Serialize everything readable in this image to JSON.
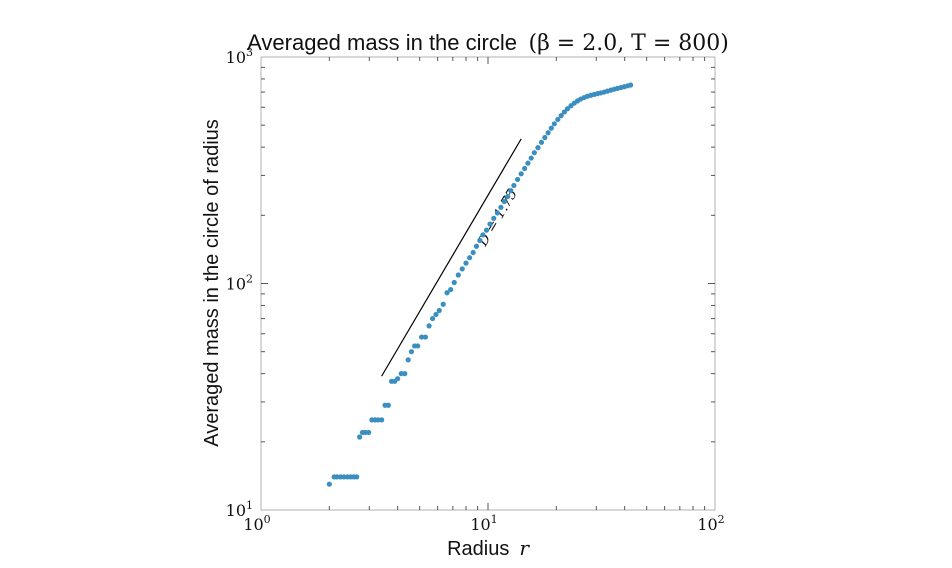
{
  "chart_data": {
    "type": "scatter",
    "title_main": "Averaged mass in the circle",
    "title_params": "(β = 2.0, T = 800)",
    "xlabel_main": "Radius",
    "xlabel_var": "r",
    "ylabel": "Averaged mass in the circle of radius",
    "xscale": "log",
    "yscale": "log",
    "xlim": [
      1,
      100
    ],
    "ylim": [
      10,
      1000
    ],
    "x_ticks": [
      {
        "value": 1,
        "base": "10",
        "exp": "0"
      },
      {
        "value": 10,
        "base": "10",
        "exp": "1"
      },
      {
        "value": 100,
        "base": "10",
        "exp": "2"
      }
    ],
    "y_ticks": [
      {
        "value": 10,
        "base": "10",
        "exp": "1"
      },
      {
        "value": 100,
        "base": "10",
        "exp": "2"
      },
      {
        "value": 1000,
        "base": "10",
        "exp": "3"
      }
    ],
    "grid": false,
    "marker_color": "#3a8fc0",
    "reference_line": {
      "x": [
        3.4,
        14.0
      ],
      "y": [
        39,
        435
      ],
      "label": "D = 1.75"
    },
    "series": [
      {
        "x": [
          2.0,
          2.1,
          2.16,
          2.24,
          2.32,
          2.4,
          2.48,
          2.56,
          2.64,
          2.72,
          2.8,
          2.88,
          2.98,
          3.08,
          3.18,
          3.28,
          3.4,
          3.52,
          3.64,
          3.76,
          3.88,
          4.0,
          4.15,
          4.3,
          4.45,
          4.6,
          4.75,
          4.9,
          5.1,
          5.3,
          5.5,
          5.7,
          5.9,
          6.1,
          6.35,
          6.6,
          6.85,
          7.1,
          7.4,
          7.7,
          8.0,
          8.3,
          8.6,
          8.9,
          9.2,
          9.5,
          9.85,
          10.2,
          10.6,
          11.0,
          11.4,
          11.8,
          12.2,
          12.6,
          13.0,
          13.5,
          14.0,
          14.5,
          15.0,
          15.5,
          16.0,
          16.6,
          17.2,
          17.8,
          18.4,
          19.0,
          19.6,
          20.3,
          21.0,
          21.7,
          22.4,
          23.2,
          24.0,
          24.8,
          25.6,
          26.5,
          27.4,
          28.4,
          29.4,
          30.4,
          31.4,
          32.5,
          33.6,
          34.8,
          36.0,
          37.2,
          38.5,
          39.8,
          41.2,
          42.5
        ],
        "y": [
          13.0,
          14.0,
          14.0,
          14.0,
          14.0,
          14.0,
          14.0,
          14.0,
          14.0,
          21.0,
          22.0,
          22.0,
          22.0,
          25.0,
          25.0,
          25.0,
          25.0,
          29.0,
          29.0,
          37.0,
          37.0,
          38.0,
          40.0,
          40.0,
          46.0,
          50.0,
          53.0,
          53.0,
          58.0,
          58.0,
          65.0,
          70.0,
          73.0,
          76.0,
          81.0,
          91.0,
          94.0,
          101,
          109,
          116,
          123,
          130,
          137,
          146,
          155,
          164,
          172,
          183,
          194,
          205,
          217,
          230,
          242,
          257,
          271,
          288,
          305,
          322,
          340,
          358,
          378,
          398,
          420,
          441,
          463,
          485,
          507,
          530,
          551,
          572,
          591,
          609,
          626,
          640,
          652,
          662,
          671,
          678,
          684,
          689,
          694,
          700,
          707,
          714,
          721,
          727,
          733,
          739,
          746,
          752
        ]
      }
    ]
  }
}
